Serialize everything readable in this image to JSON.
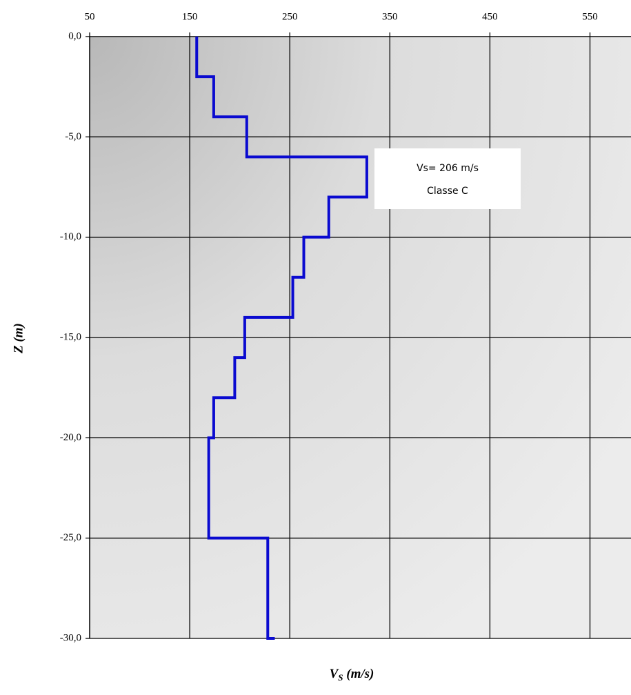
{
  "chart_data": {
    "type": "line",
    "x_label": [
      "V",
      "S",
      " (m/s)"
    ],
    "y_label": "Z (m)",
    "annotation": [
      "Vs= 206 m/s",
      "Classe C"
    ],
    "xlim": [
      50,
      591
    ],
    "ylim": [
      -30,
      0
    ],
    "xticks": [
      50,
      150,
      250,
      350,
      450,
      550
    ],
    "yticks": [
      {
        "value": 0,
        "label": "0,0"
      },
      {
        "value": -5,
        "label": "-5,0"
      },
      {
        "value": -10,
        "label": "-10,0"
      },
      {
        "value": -15,
        "label": "-15,0"
      },
      {
        "value": -20,
        "label": "-20,0"
      },
      {
        "value": -25,
        "label": "-25,0"
      },
      {
        "value": -30,
        "label": "-30,0"
      }
    ],
    "grid": true,
    "series": [
      {
        "color": "#0a0ad0",
        "x": [
          157,
          157,
          174,
          174,
          207,
          207,
          327,
          327,
          289,
          289,
          264,
          264,
          253,
          253,
          205,
          205,
          195,
          195,
          174,
          174,
          169,
          169,
          228,
          228,
          235
        ],
        "values": [
          0,
          -2,
          -2,
          -4,
          -4,
          -6,
          -6,
          -8,
          -8,
          -10,
          -10,
          -12,
          -12,
          -14,
          -14,
          -16,
          -16,
          -18,
          -18,
          -20,
          -20,
          -25,
          -25,
          -30,
          -30
        ]
      }
    ]
  }
}
